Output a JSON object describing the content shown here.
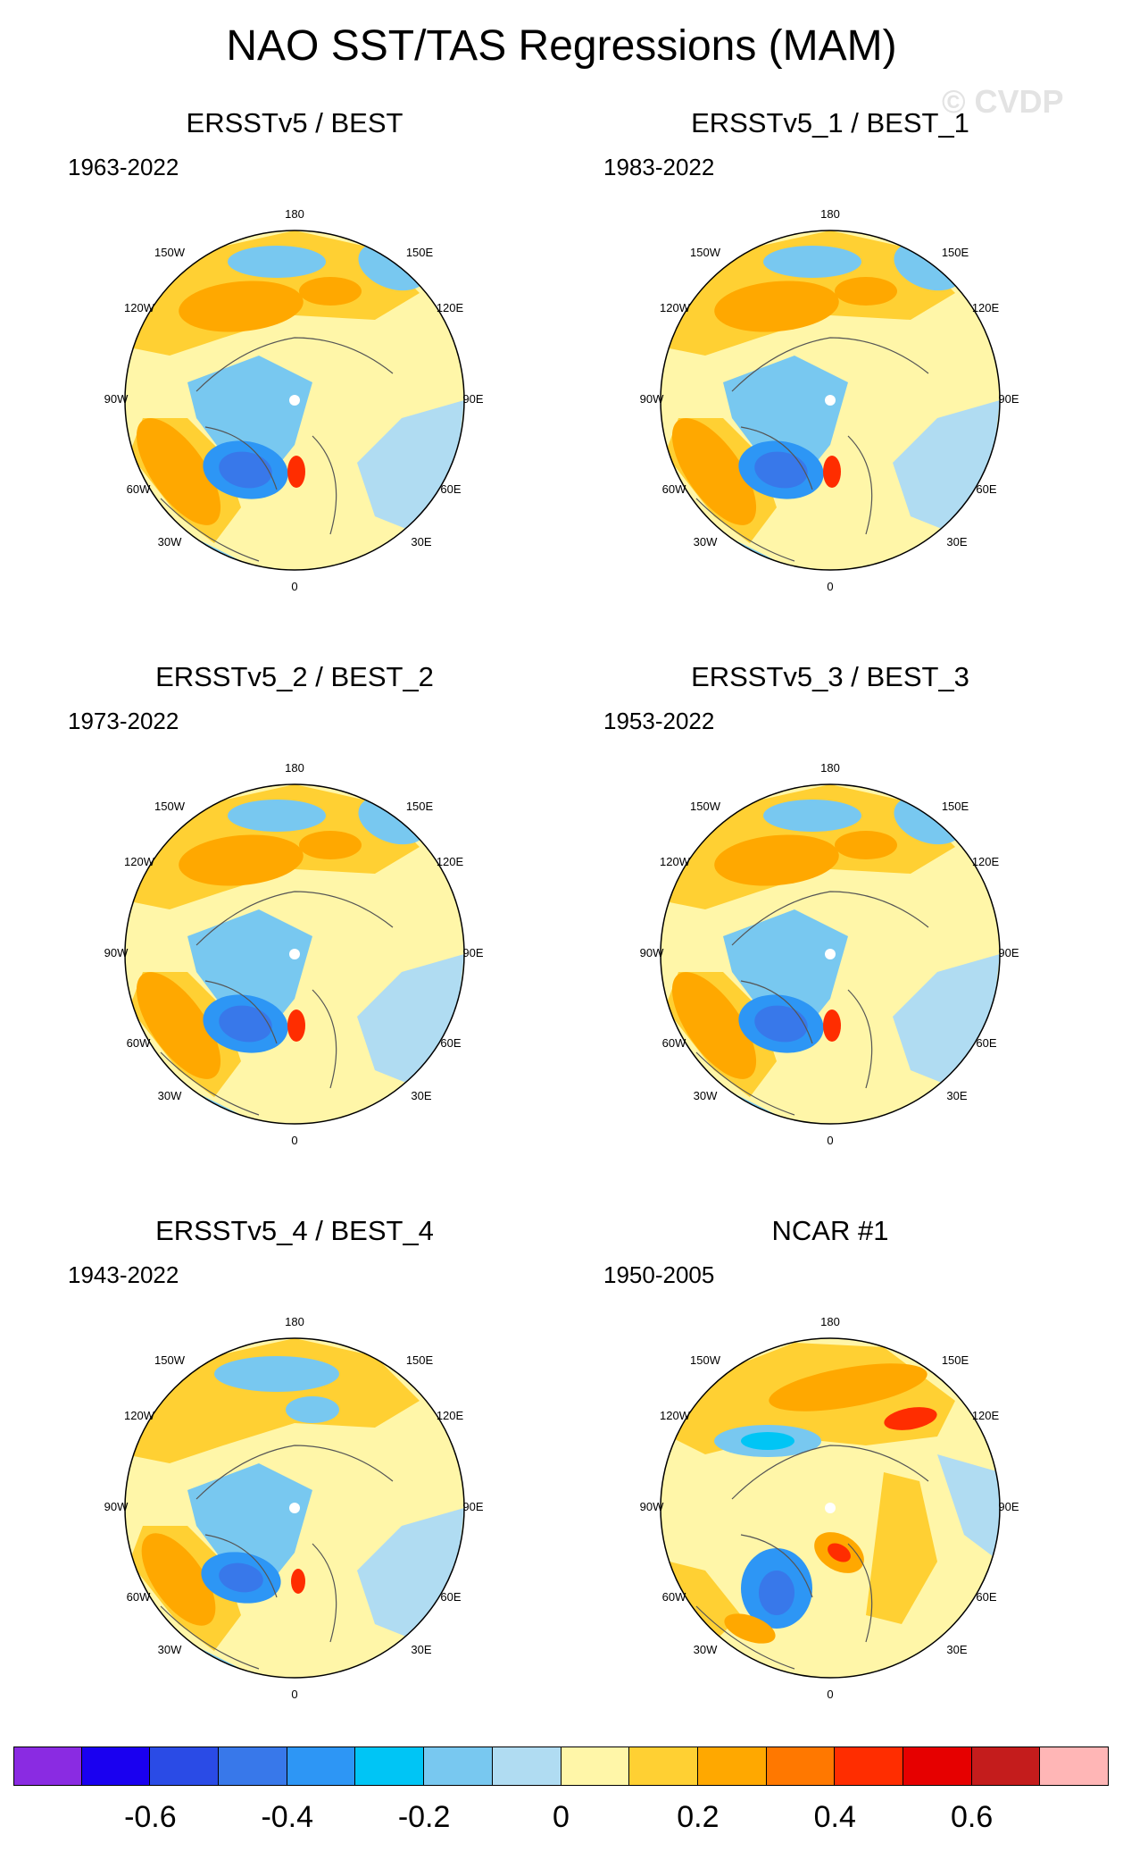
{
  "title": "NAO SST/TAS Regressions (MAM)",
  "watermark": "© CVDP",
  "longitude_labels": [
    "180",
    "150E",
    "120E",
    "90E",
    "60E",
    "30E",
    "0",
    "30W",
    "60W",
    "90W",
    "120W",
    "150W"
  ],
  "panels": [
    {
      "title": "ERSSTv5 / BEST",
      "period": "1963-2022"
    },
    {
      "title": "ERSSTv5_1 / BEST_1",
      "period": "1983-2022"
    },
    {
      "title": "ERSSTv5_2 / BEST_2",
      "period": "1973-2022"
    },
    {
      "title": "ERSSTv5_3 / BEST_3",
      "period": "1953-2022"
    },
    {
      "title": "ERSSTv5_4 / BEST_4",
      "period": "1943-2022"
    },
    {
      "title": "NCAR #1",
      "period": "1950-2005"
    }
  ],
  "colorbar": {
    "colors": [
      "#8a2be2",
      "#1a00f0",
      "#2a4be6",
      "#3878ea",
      "#2d96f5",
      "#00c5f5",
      "#78c8f0",
      "#b0dcf2",
      "#fff6a8",
      "#ffd033",
      "#ffa800",
      "#ff7800",
      "#ff2d00",
      "#e60000",
      "#c41c1c",
      "#ffb6b6"
    ],
    "labels": [
      {
        "text": "-0.6",
        "index": 2
      },
      {
        "text": "-0.4",
        "index": 4
      },
      {
        "text": "-0.2",
        "index": 6
      },
      {
        "text": "0",
        "index": 8
      },
      {
        "text": "0.2",
        "index": 10
      },
      {
        "text": "0.4",
        "index": 12
      },
      {
        "text": "0.6",
        "index": 14
      }
    ]
  }
}
